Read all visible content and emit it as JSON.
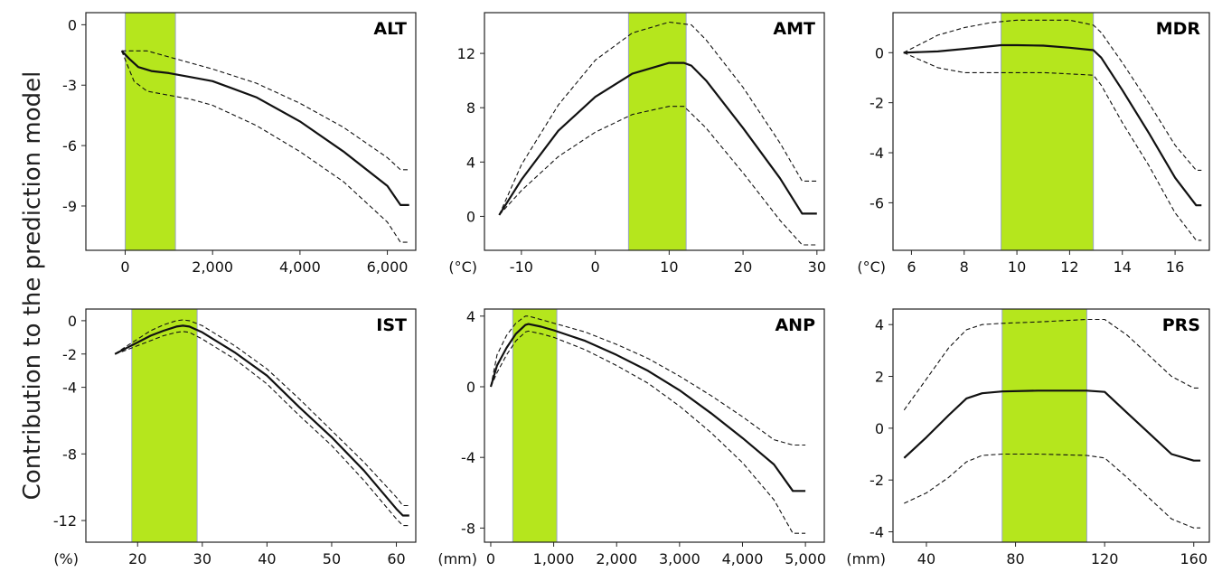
{
  "figure": {
    "ylabel": "Contribution to the prediction model"
  },
  "chart_data": [
    {
      "type": "line",
      "title": "ALT",
      "xunit": "",
      "xlim": [
        -900,
        6650
      ],
      "ylim": [
        -11.2,
        0.6
      ],
      "xticks": [
        0,
        2000,
        4000,
        6000
      ],
      "xtick_labels": [
        "0",
        "2,000",
        "4,000",
        "6,000"
      ],
      "yticks": [
        0,
        -3,
        -6,
        -9
      ],
      "ytick_labels": [
        "0",
        "-3",
        "-6",
        "-9"
      ],
      "highlight": [
        0,
        1150
      ],
      "highlight_color": "#b5e61d",
      "series": [
        {
          "style": "solid",
          "x": [
            -80,
            100,
            300,
            600,
            1000,
            1500,
            2000,
            3000,
            4000,
            5000,
            6000,
            6300,
            6500
          ],
          "y": [
            -1.3,
            -1.7,
            -2.1,
            -2.3,
            -2.4,
            -2.6,
            -2.8,
            -3.6,
            -4.8,
            -6.3,
            -8.0,
            -8.95,
            -8.95
          ]
        },
        {
          "style": "dashed",
          "x": [
            -80,
            200,
            500,
            1000,
            1500,
            2000,
            3000,
            4000,
            5000,
            6000,
            6300,
            6500
          ],
          "y": [
            -1.3,
            -1.3,
            -1.3,
            -1.6,
            -1.9,
            -2.2,
            -2.9,
            -3.9,
            -5.1,
            -6.6,
            -7.2,
            -7.2
          ]
        },
        {
          "style": "dashed",
          "x": [
            -80,
            200,
            500,
            1000,
            1500,
            2000,
            3000,
            4000,
            5000,
            6000,
            6300,
            6500
          ],
          "y": [
            -1.3,
            -2.8,
            -3.3,
            -3.5,
            -3.7,
            -4.0,
            -5.0,
            -6.3,
            -7.8,
            -9.8,
            -10.8,
            -10.8
          ]
        }
      ]
    },
    {
      "type": "line",
      "title": "AMT",
      "xunit": "(°C)",
      "xlim": [
        -15,
        31
      ],
      "ylim": [
        -2.5,
        15
      ],
      "xticks": [
        -10,
        0,
        10,
        20,
        30
      ],
      "xtick_labels": [
        "-10",
        "0",
        "10",
        "20",
        "30"
      ],
      "yticks": [
        0,
        4,
        8,
        12
      ],
      "ytick_labels": [
        "0",
        "4",
        "8",
        "12"
      ],
      "highlight": [
        4.5,
        12.3
      ],
      "highlight_color": "#b5e61d",
      "series": [
        {
          "style": "solid",
          "x": [
            -13,
            -10,
            -5,
            0,
            5,
            10,
            12,
            13,
            15,
            20,
            25,
            28,
            30
          ],
          "y": [
            0.1,
            2.7,
            6.3,
            8.8,
            10.5,
            11.3,
            11.3,
            11.1,
            10.0,
            6.5,
            2.8,
            0.2,
            0.2
          ]
        },
        {
          "style": "dashed",
          "x": [
            -13,
            -10,
            -5,
            0,
            5,
            10,
            13,
            15,
            20,
            25,
            28,
            30
          ],
          "y": [
            0.1,
            3.8,
            8.2,
            11.5,
            13.5,
            14.3,
            14.1,
            13.0,
            9.5,
            5.4,
            2.6,
            2.6
          ]
        },
        {
          "style": "dashed",
          "x": [
            -13,
            -10,
            -5,
            0,
            5,
            10,
            12,
            15,
            20,
            25,
            28,
            30
          ],
          "y": [
            0.1,
            1.9,
            4.4,
            6.2,
            7.5,
            8.1,
            8.1,
            6.5,
            3.2,
            -0.3,
            -2.1,
            -2.1
          ]
        }
      ]
    },
    {
      "type": "line",
      "title": "MDR",
      "xunit": "(°C)",
      "xlim": [
        5.3,
        17.3
      ],
      "ylim": [
        -7.9,
        1.6
      ],
      "xticks": [
        6,
        8,
        10,
        12,
        14,
        16
      ],
      "xtick_labels": [
        "6",
        "8",
        "10",
        "12",
        "14",
        "16"
      ],
      "yticks": [
        0,
        -2,
        -4,
        -6
      ],
      "ytick_labels": [
        "0",
        "-2",
        "-4",
        "-6"
      ],
      "highlight": [
        9.4,
        12.9
      ],
      "highlight_color": "#b5e61d",
      "series": [
        {
          "style": "solid",
          "x": [
            5.7,
            7,
            8,
            9.4,
            10,
            11,
            12,
            12.9,
            13.2,
            14,
            15,
            16,
            16.8,
            17
          ],
          "y": [
            0.0,
            0.05,
            0.15,
            0.3,
            0.3,
            0.28,
            0.2,
            0.1,
            -0.2,
            -1.5,
            -3.2,
            -5.0,
            -6.1,
            -6.1
          ]
        },
        {
          "style": "dashed",
          "x": [
            5.7,
            7,
            8,
            9,
            10,
            11,
            12,
            12.9,
            13.2,
            14,
            15,
            16,
            16.8,
            17
          ],
          "y": [
            0.0,
            0.7,
            1.0,
            1.2,
            1.3,
            1.3,
            1.3,
            1.1,
            0.8,
            -0.4,
            -2.0,
            -3.7,
            -4.7,
            -4.7
          ]
        },
        {
          "style": "dashed",
          "x": [
            5.7,
            7,
            8,
            9,
            10,
            11,
            12,
            12.9,
            13.2,
            14,
            15,
            16,
            16.8,
            17
          ],
          "y": [
            0.0,
            -0.6,
            -0.8,
            -0.8,
            -0.8,
            -0.8,
            -0.85,
            -0.9,
            -1.3,
            -2.8,
            -4.5,
            -6.4,
            -7.5,
            -7.5
          ]
        }
      ]
    },
    {
      "type": "line",
      "title": "IST",
      "xunit": "(%)",
      "xlim": [
        12,
        63
      ],
      "ylim": [
        -13.3,
        0.7
      ],
      "xticks": [
        20,
        30,
        40,
        50,
        60
      ],
      "xtick_labels": [
        "20",
        "30",
        "40",
        "50",
        "60"
      ],
      "yticks": [
        0,
        -2,
        -4,
        -8,
        -12
      ],
      "ytick_labels": [
        "0",
        "-2",
        "-4",
        "-8",
        "-12"
      ],
      "highlight": [
        19.1,
        29.2
      ],
      "highlight_color": "#b5e61d",
      "series": [
        {
          "style": "solid",
          "x": [
            16.5,
            18,
            20,
            22,
            24,
            26,
            27,
            28,
            30,
            35,
            40,
            45,
            50,
            55,
            60,
            61,
            62
          ],
          "y": [
            -2.0,
            -1.7,
            -1.3,
            -0.9,
            -0.6,
            -0.35,
            -0.3,
            -0.35,
            -0.7,
            -1.9,
            -3.3,
            -5.2,
            -7.0,
            -9.0,
            -11.3,
            -11.7,
            -11.7
          ]
        },
        {
          "style": "dashed",
          "x": [
            16.5,
            18,
            20,
            22,
            24,
            26,
            27,
            28,
            30,
            35,
            40,
            45,
            50,
            55,
            60,
            61,
            62
          ],
          "y": [
            -2.0,
            -1.6,
            -1.1,
            -0.6,
            -0.25,
            0.0,
            0.05,
            0.0,
            -0.3,
            -1.5,
            -2.9,
            -4.7,
            -6.6,
            -8.5,
            -10.6,
            -11.1,
            -11.1
          ]
        },
        {
          "style": "dashed",
          "x": [
            16.5,
            18,
            20,
            22,
            24,
            26,
            27,
            28,
            30,
            35,
            40,
            45,
            50,
            55,
            60,
            61,
            62
          ],
          "y": [
            -2.0,
            -1.8,
            -1.5,
            -1.2,
            -0.9,
            -0.7,
            -0.65,
            -0.7,
            -1.1,
            -2.3,
            -3.8,
            -5.7,
            -7.5,
            -9.6,
            -11.9,
            -12.3,
            -12.3
          ]
        }
      ]
    },
    {
      "type": "line",
      "title": "ANP",
      "xunit": "(mm)",
      "xlim": [
        -100,
        5300
      ],
      "ylim": [
        -8.8,
        4.4
      ],
      "xticks": [
        0,
        1000,
        2000,
        3000,
        4000,
        5000
      ],
      "xtick_labels": [
        "0",
        "1,000",
        "2,000",
        "3,000",
        "4,000",
        "5,000"
      ],
      "yticks": [
        4,
        0,
        -4,
        -8
      ],
      "ytick_labels": [
        "4",
        "0",
        "-4",
        "-8"
      ],
      "highlight": [
        350,
        1050
      ],
      "highlight_color": "#b5e61d",
      "series": [
        {
          "style": "solid",
          "x": [
            0,
            100,
            250,
            400,
            550,
            600,
            800,
            1000,
            1500,
            2000,
            2500,
            3000,
            3500,
            4000,
            4500,
            4800,
            5000
          ],
          "y": [
            0.0,
            1.2,
            2.2,
            3.0,
            3.5,
            3.55,
            3.4,
            3.2,
            2.6,
            1.8,
            0.9,
            -0.2,
            -1.5,
            -2.9,
            -4.4,
            -5.9,
            -5.9
          ]
        },
        {
          "style": "dashed",
          "x": [
            0,
            100,
            250,
            400,
            550,
            600,
            800,
            1000,
            1500,
            2000,
            2500,
            3000,
            3500,
            4000,
            4500,
            4800,
            5000
          ],
          "y": [
            0.0,
            1.8,
            2.9,
            3.6,
            4.0,
            4.0,
            3.8,
            3.6,
            3.1,
            2.4,
            1.6,
            0.6,
            -0.5,
            -1.7,
            -3.0,
            -3.3,
            -3.3
          ]
        },
        {
          "style": "dashed",
          "x": [
            0,
            100,
            250,
            400,
            550,
            600,
            800,
            1000,
            1500,
            2000,
            2500,
            3000,
            3500,
            4000,
            4500,
            4800,
            5000
          ],
          "y": [
            0.0,
            0.8,
            1.8,
            2.6,
            3.1,
            3.15,
            3.0,
            2.8,
            2.1,
            1.2,
            0.2,
            -1.1,
            -2.6,
            -4.3,
            -6.4,
            -8.3,
            -8.3
          ]
        }
      ]
    },
    {
      "type": "line",
      "title": "PRS",
      "xunit": "(mm)",
      "xlim": [
        25,
        167
      ],
      "ylim": [
        -4.4,
        4.6
      ],
      "xticks": [
        40,
        80,
        120,
        160
      ],
      "xtick_labels": [
        "40",
        "80",
        "120",
        "160"
      ],
      "yticks": [
        4,
        2,
        0,
        -2,
        -4
      ],
      "ytick_labels": [
        "4",
        "2",
        "0",
        "-2",
        "-4"
      ],
      "highlight": [
        74,
        112
      ],
      "highlight_color": "#b5e61d",
      "series": [
        {
          "style": "solid",
          "x": [
            30,
            40,
            50,
            58,
            65,
            74,
            90,
            112,
            120,
            130,
            140,
            150,
            160,
            163
          ],
          "y": [
            -1.15,
            -0.35,
            0.5,
            1.15,
            1.35,
            1.42,
            1.45,
            1.45,
            1.4,
            0.6,
            -0.2,
            -1.0,
            -1.25,
            -1.25
          ]
        },
        {
          "style": "dashed",
          "x": [
            30,
            40,
            50,
            58,
            65,
            74,
            90,
            112,
            120,
            130,
            140,
            150,
            160,
            163
          ],
          "y": [
            0.7,
            1.9,
            3.1,
            3.8,
            4.0,
            4.05,
            4.1,
            4.2,
            4.2,
            3.6,
            2.8,
            2.0,
            1.55,
            1.55
          ]
        },
        {
          "style": "dashed",
          "x": [
            30,
            40,
            50,
            58,
            65,
            74,
            90,
            112,
            120,
            130,
            140,
            150,
            160,
            163
          ],
          "y": [
            -2.9,
            -2.5,
            -1.9,
            -1.3,
            -1.05,
            -1.0,
            -1.0,
            -1.05,
            -1.15,
            -1.9,
            -2.7,
            -3.5,
            -3.85,
            -3.85
          ]
        }
      ]
    }
  ]
}
